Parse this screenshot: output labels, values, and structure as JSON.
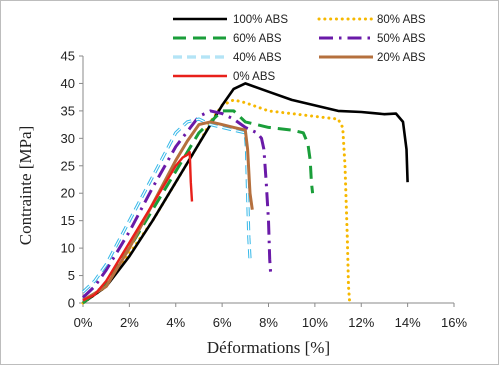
{
  "chart_data": {
    "type": "line",
    "xlabel": "Déformations  [%]",
    "ylabel": "Contrainte [MPa]",
    "xlim": [
      0,
      16
    ],
    "ylim": [
      0,
      45
    ],
    "x_ticks": [
      {
        "v": 0,
        "label": "0%"
      },
      {
        "v": 2,
        "label": "2%"
      },
      {
        "v": 4,
        "label": "4%"
      },
      {
        "v": 6,
        "label": "6%"
      },
      {
        "v": 8,
        "label": "8%"
      },
      {
        "v": 10,
        "label": "10%"
      },
      {
        "v": 12,
        "label": "12%"
      },
      {
        "v": 14,
        "label": "14%"
      },
      {
        "v": 16,
        "label": "16%"
      }
    ],
    "y_ticks": [
      {
        "v": 0,
        "label": "0"
      },
      {
        "v": 5,
        "label": "5"
      },
      {
        "v": 10,
        "label": "10"
      },
      {
        "v": 15,
        "label": "15"
      },
      {
        "v": 20,
        "label": "20"
      },
      {
        "v": 25,
        "label": "25"
      },
      {
        "v": 30,
        "label": "30"
      },
      {
        "v": 35,
        "label": "35"
      },
      {
        "v": 40,
        "label": "40"
      },
      {
        "v": 45,
        "label": "45"
      }
    ],
    "legend_placement": "top",
    "grid": false,
    "series": [
      {
        "name": "100% ABS",
        "color": "#000000",
        "dash": "solid",
        "width": 2.6,
        "x": [
          0,
          1,
          2,
          3,
          4,
          5,
          6,
          6.5,
          7,
          8,
          9,
          10,
          11,
          12,
          12.5,
          13,
          13.5,
          13.8,
          13.95,
          14.0
        ],
        "y": [
          0,
          3,
          8.5,
          15,
          22,
          29,
          36,
          39,
          40,
          38.5,
          37,
          36,
          35,
          34.8,
          34.6,
          34.4,
          34.5,
          33,
          28,
          22
        ]
      },
      {
        "name": "80% ABS",
        "color": "#f6b800",
        "dash": "dots",
        "width": 3,
        "x": [
          0,
          1,
          2,
          3,
          4,
          5,
          5.5,
          6,
          6.5,
          7,
          8,
          9,
          10,
          11,
          11.2,
          11.3,
          11.4,
          11.45,
          11.5
        ],
        "y": [
          0,
          3,
          9,
          15,
          22,
          29,
          33,
          36,
          37,
          36.5,
          35,
          34.5,
          34,
          33.5,
          32,
          25,
          12,
          3,
          0
        ]
      },
      {
        "name": "60% ABS",
        "color": "#1a9e3a",
        "dash": "longdash",
        "width": 3,
        "x": [
          0,
          1,
          2,
          3,
          4,
          5,
          6,
          6.5,
          7,
          8,
          9,
          9.5,
          9.7,
          9.8,
          9.85,
          9.9
        ],
        "y": [
          0,
          3.5,
          10,
          17,
          24,
          31,
          35,
          35,
          33,
          32,
          31.5,
          31,
          29,
          26,
          22,
          20
        ]
      },
      {
        "name": "50% ABS",
        "color": "#6a1aa8",
        "dash": "dashdot",
        "width": 3,
        "x": [
          0,
          0.5,
          1,
          2,
          3,
          4,
          5,
          5.5,
          6,
          6.5,
          7,
          7.5,
          7.7,
          7.8,
          7.9,
          8.0,
          8.05,
          8.1
        ],
        "y": [
          1,
          3,
          6,
          13,
          21,
          28.5,
          34,
          35,
          34.5,
          33.5,
          32,
          31,
          30,
          28,
          22,
          15,
          8,
          5
        ]
      },
      {
        "name": "40% ABS",
        "color": "#36b8e8",
        "dash": "dash",
        "width": 2.4,
        "x": [
          0,
          0.5,
          1,
          2,
          3,
          3.5,
          4,
          4.5,
          5,
          5.5,
          6,
          6.5,
          7,
          7.05,
          7.1,
          7.15,
          7.2
        ],
        "y": [
          2,
          4,
          7,
          15,
          23,
          27,
          31,
          33,
          33.5,
          32.5,
          32,
          31.5,
          31,
          28,
          20,
          12,
          8
        ]
      },
      {
        "name": "20% ABS",
        "color": "#b5703e",
        "dash": "solid",
        "width": 3,
        "x": [
          0,
          1,
          2,
          3,
          4,
          4.5,
          5,
          5.5,
          6,
          6.5,
          7,
          7.1,
          7.2,
          7.3
        ],
        "y": [
          0.5,
          3,
          10,
          18,
          26,
          29.5,
          32.5,
          33,
          32.5,
          32,
          31.5,
          28,
          20,
          17
        ]
      },
      {
        "name": "0% ABS",
        "color": "#e8201a",
        "dash": "solid",
        "width": 2.4,
        "x": [
          0,
          0.5,
          1,
          2,
          3,
          4,
          4.3,
          4.5,
          4.6,
          4.65,
          4.7
        ],
        "y": [
          0.5,
          1.5,
          4,
          11,
          18,
          25,
          26.5,
          27,
          27.5,
          22,
          18.5
        ]
      }
    ]
  }
}
